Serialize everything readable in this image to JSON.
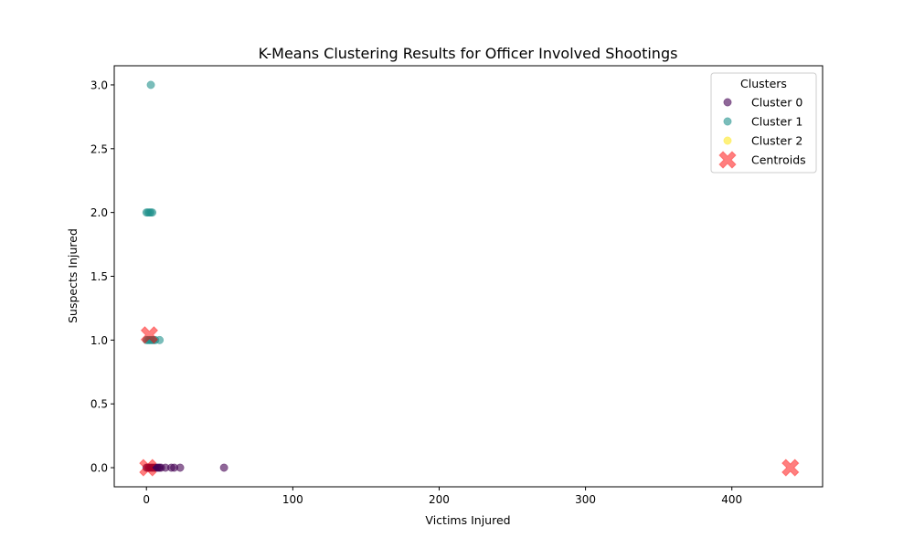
{
  "chart_data": {
    "type": "scatter",
    "title": "K-Means Clustering Results for Officer Involved Shootings",
    "xlabel": "Victims Injured",
    "ylabel": "Suspects Injured",
    "xlim": [
      -22,
      462
    ],
    "ylim": [
      -0.15,
      3.15
    ],
    "xticks": [
      0,
      100,
      200,
      300,
      400
    ],
    "yticks": [
      0.0,
      0.5,
      1.0,
      1.5,
      2.0,
      2.5,
      3.0
    ],
    "grid": false,
    "legend": {
      "title": "Clusters",
      "placement": "top-right",
      "entries": [
        "Cluster 0",
        "Cluster 1",
        "Cluster 2",
        "Centroids"
      ]
    },
    "series": [
      {
        "name": "Cluster 0",
        "color": "#440154",
        "x": [
          0,
          1,
          2,
          3,
          4,
          5,
          6,
          7,
          8,
          9,
          10,
          13,
          17,
          19,
          23,
          53
        ],
        "y": [
          0,
          0,
          0,
          0,
          0,
          0,
          0,
          0,
          0,
          0,
          0,
          0,
          0,
          0,
          0,
          0
        ]
      },
      {
        "name": "Cluster 1",
        "color": "#21918c",
        "x": [
          3,
          0,
          1,
          2,
          3,
          4,
          0,
          1,
          2,
          3,
          4,
          5,
          6,
          9
        ],
        "y": [
          3,
          2,
          2,
          2,
          2,
          2,
          1,
          1,
          1,
          1,
          1,
          1,
          1,
          1
        ]
      },
      {
        "name": "Cluster 2",
        "color": "#fde725",
        "x": [],
        "y": []
      },
      {
        "name": "Centroids",
        "color": "#ff0000",
        "marker": "X",
        "x": [
          1,
          2,
          440
        ],
        "y": [
          0,
          1.04,
          0
        ]
      }
    ]
  }
}
